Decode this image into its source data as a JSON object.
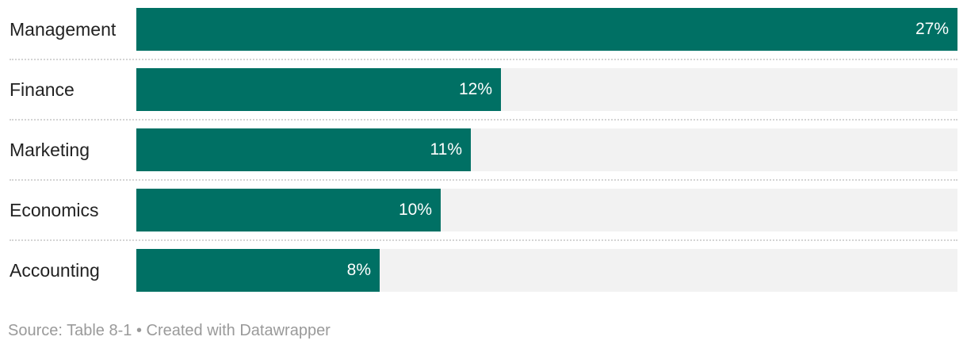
{
  "chart_data": {
    "type": "bar",
    "orientation": "horizontal",
    "categories": [
      "Management",
      "Finance",
      "Marketing",
      "Economics",
      "Accounting"
    ],
    "values": [
      27,
      12,
      11,
      10,
      8
    ],
    "value_labels": [
      "27%",
      "12%",
      "11%",
      "10%",
      "8%"
    ],
    "xlim": [
      0,
      27
    ],
    "grid": false,
    "legend": "none",
    "colors": {
      "bar": "#007064",
      "track": "#f2f2f2",
      "value_label": "#ffffff",
      "separator": "#d4d4d4"
    }
  },
  "footer": {
    "text": "Source: Table 8-1 • Created with Datawrapper"
  }
}
